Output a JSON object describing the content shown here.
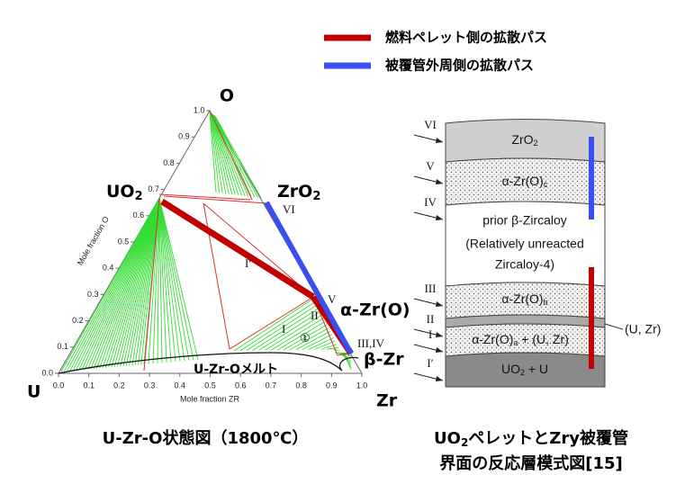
{
  "legend": {
    "items": [
      {
        "label": "燃料ペレット側の拡散パス",
        "color": "#c00000"
      },
      {
        "label": "被覆管外周側の拡散パス",
        "color": "#3a4ff0"
      }
    ]
  },
  "phase_diagram": {
    "corners": {
      "o": "O",
      "uo2": {
        "text": "UO",
        "sub": "2"
      },
      "zro2": {
        "text": "ZrO",
        "sub": "2"
      },
      "alpha_zr": "α-Zr(O)",
      "beta_zr": "β-Zr",
      "u": "U",
      "zr": "Zr"
    },
    "regions": {
      "vi": "VI",
      "i_prime": "I′",
      "v": "V",
      "ii": "II",
      "i": "I",
      "one": "①",
      "iii_iv": "III,IV",
      "melt": "U-Zr-Oメルト"
    },
    "axis_bottom": {
      "title": "Mole fraction ZR",
      "ticks": [
        "0.0",
        "0.1",
        "0.2",
        "0.3",
        "0.4",
        "0.5",
        "0.6",
        "0.7",
        "0.8",
        "0.9",
        "1.0"
      ]
    },
    "axis_left": {
      "title": "Mole fraction O",
      "ticks": [
        "0.0",
        "0.1",
        "0.2",
        "0.3",
        "0.4",
        "0.5",
        "0.6",
        "0.7",
        "0.8",
        "0.9",
        "1.0"
      ]
    },
    "caption": "U-Zr-O状態図（1800℃）"
  },
  "layer_schematic": {
    "markers": [
      "VI",
      "V",
      "IV",
      "III",
      "II",
      "I",
      "I′"
    ],
    "layers": {
      "zro2": {
        "text": "ZrO",
        "sub": "2"
      },
      "alpha_c": {
        "text": "α-Zr(O)",
        "sub": "c"
      },
      "prior": "prior β-Zircaloy",
      "unreacted_1": "(Relatively unreacted",
      "unreacted_2": "Zircaloy-4)",
      "alpha_b": {
        "text": "α-Zr(O)",
        "sub": "b"
      },
      "alpha_a": {
        "text": "α-Zr(O)",
        "sub": "a",
        "rest": " + (U, Zr)"
      },
      "uo2_u": {
        "text": "UO",
        "sub": "2",
        "rest": " + U"
      },
      "u_zr": "(U, Zr)"
    },
    "caption": {
      "line1": {
        "a": "UO",
        "sub": "2",
        "b": "ペレットとZry被覆管"
      },
      "line2": "界面の反応層模式図[15]"
    }
  }
}
